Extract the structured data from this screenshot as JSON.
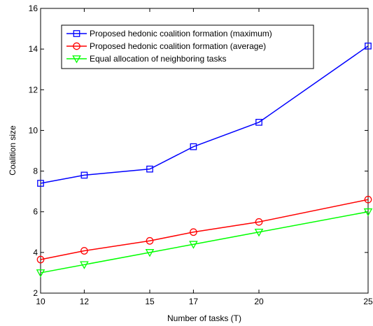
{
  "chart_data": {
    "type": "line",
    "xlabel": "Number of tasks (T)",
    "ylabel": "Coalition size",
    "xlim": [
      10,
      25
    ],
    "ylim": [
      2,
      16
    ],
    "xticks": [
      10,
      12,
      15,
      17,
      20,
      25
    ],
    "yticks": [
      2,
      4,
      6,
      8,
      10,
      12,
      14,
      16
    ],
    "grid": false,
    "legend_position": "top-left",
    "x": [
      10,
      12,
      15,
      17,
      20,
      25
    ],
    "series": [
      {
        "name": "Proposed hedonic coalition formation (maximum)",
        "values": [
          7.4,
          7.8,
          8.1,
          9.2,
          10.4,
          14.15
        ],
        "color": "#0000ff",
        "marker": "square"
      },
      {
        "name": "Proposed hedonic coalition formation (average)",
        "values": [
          3.65,
          4.08,
          4.57,
          5.0,
          5.5,
          6.6
        ],
        "color": "#ff0000",
        "marker": "circle"
      },
      {
        "name": "Equal allocation of neighboring tasks",
        "values": [
          3.0,
          3.4,
          4.0,
          4.4,
          5.0,
          6.0
        ],
        "color": "#00ff00",
        "marker": "triangle-down"
      }
    ]
  }
}
